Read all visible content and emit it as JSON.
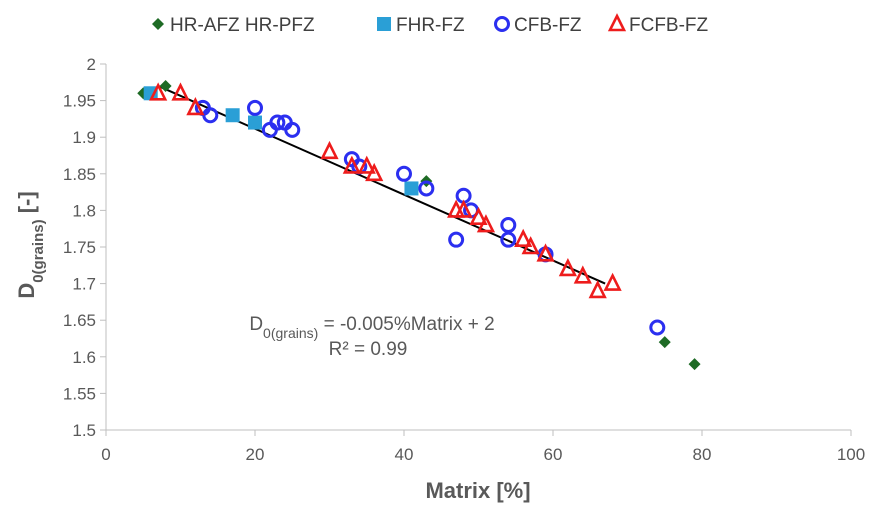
{
  "chart_data": {
    "type": "scatter",
    "xlabel": "Matrix [%]",
    "ylabel": "D0(grains) [-]",
    "ylabel_main": "D",
    "ylabel_sub": "0(grains)",
    "ylabel_unit": " [-]",
    "xlim": [
      0,
      100
    ],
    "ylim": [
      1.5,
      2
    ],
    "x_ticks": [
      0,
      20,
      40,
      60,
      80,
      100
    ],
    "x_tick_labels": [
      "0",
      "20",
      "40",
      "60",
      "80",
      "100"
    ],
    "y_ticks": [
      1.5,
      1.55,
      1.6,
      1.65,
      1.7,
      1.75,
      1.8,
      1.85,
      1.9,
      1.95,
      2
    ],
    "y_tick_labels": [
      "1.5",
      "1.55",
      "1.6",
      "1.65",
      "1.7",
      "1.75",
      "1.8",
      "1.85",
      "1.9",
      "1.95",
      "2"
    ],
    "grid": false,
    "legend_position": "top",
    "series": [
      {
        "name": "HR-AFZ HR-PFZ",
        "marker": "diamond",
        "color": "#1e6b25",
        "points": [
          [
            5,
            1.96
          ],
          [
            8,
            1.97
          ],
          [
            43,
            1.84
          ],
          [
            75,
            1.62
          ],
          [
            79,
            1.59
          ]
        ]
      },
      {
        "name": "FHR-FZ",
        "marker": "square",
        "color": "#2a9fd6",
        "points": [
          [
            6,
            1.96
          ],
          [
            17,
            1.93
          ],
          [
            20,
            1.92
          ],
          [
            41,
            1.83
          ]
        ]
      },
      {
        "name": "CFB-FZ",
        "marker": "circle",
        "color": "#2b2ff0",
        "points": [
          [
            13,
            1.94
          ],
          [
            14,
            1.93
          ],
          [
            20,
            1.94
          ],
          [
            22,
            1.91
          ],
          [
            23,
            1.92
          ],
          [
            24,
            1.92
          ],
          [
            25,
            1.91
          ],
          [
            33,
            1.87
          ],
          [
            34,
            1.86
          ],
          [
            40,
            1.85
          ],
          [
            43,
            1.83
          ],
          [
            47,
            1.76
          ],
          [
            48,
            1.82
          ],
          [
            49,
            1.8
          ],
          [
            54,
            1.78
          ],
          [
            54,
            1.76
          ],
          [
            59,
            1.74
          ],
          [
            74,
            1.64
          ]
        ]
      },
      {
        "name": "FCFB-FZ",
        "marker": "triangle",
        "color": "#ee1c1c",
        "points": [
          [
            7,
            1.96
          ],
          [
            10,
            1.96
          ],
          [
            12,
            1.94
          ],
          [
            30,
            1.88
          ],
          [
            33,
            1.86
          ],
          [
            35,
            1.86
          ],
          [
            36,
            1.85
          ],
          [
            47,
            1.8
          ],
          [
            48,
            1.8
          ],
          [
            50,
            1.79
          ],
          [
            51,
            1.78
          ],
          [
            56,
            1.76
          ],
          [
            57,
            1.75
          ],
          [
            59,
            1.74
          ],
          [
            62,
            1.72
          ],
          [
            64,
            1.71
          ],
          [
            66,
            1.69
          ],
          [
            68,
            1.7
          ]
        ]
      }
    ],
    "trendline": {
      "x": [
        7,
        67
      ],
      "y": [
        1.97,
        1.7
      ],
      "color": "#000000"
    },
    "annotation": {
      "equation_main": "D",
      "equation_sub": "0(grains)",
      "equation_rest": " = -0.005%Matrix + 2",
      "r2": "R² = 0.99"
    }
  }
}
